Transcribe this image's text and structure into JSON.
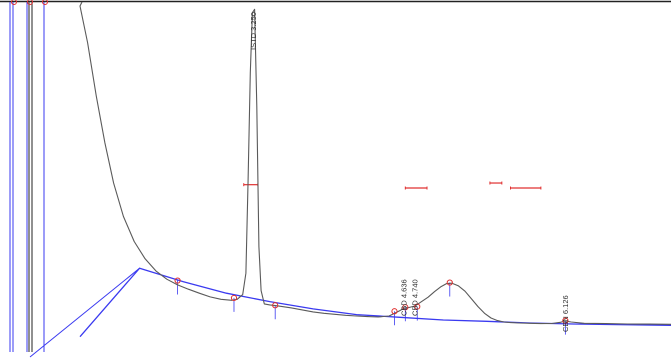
{
  "colors": {
    "trace": "#5a5a5a",
    "baseline": "#3a3af0",
    "marker": "#e03030",
    "frame": "#222222"
  },
  "chart_data": {
    "type": "line",
    "title": "",
    "xlabel": "",
    "ylabel": "",
    "grid": false,
    "legend": "none",
    "x_unit": "min",
    "xlim": [
      1.65,
      7.1
    ],
    "ylim": [
      0,
      100
    ],
    "series": [
      {
        "x": [
          1.65,
          1.72,
          1.8,
          1.88,
          1.96,
          2.05,
          2.15,
          2.25,
          2.35,
          2.45,
          2.55,
          2.65,
          2.75,
          2.85,
          2.95,
          3.05,
          3.1,
          3.15,
          3.18,
          3.2,
          3.22,
          3.24,
          3.26,
          3.28,
          3.3,
          3.32,
          3.35,
          3.4,
          3.45,
          3.5,
          3.6,
          3.7,
          3.8,
          3.9,
          4.0,
          4.1,
          4.2,
          4.3,
          4.4,
          4.5,
          4.6,
          4.636,
          4.68,
          4.74,
          4.8,
          4.86,
          4.92,
          4.98,
          5.03,
          5.08,
          5.14,
          5.2,
          5.26,
          5.32,
          5.38,
          5.44,
          5.5,
          5.56,
          5.62,
          5.7,
          5.8,
          5.9,
          6.0,
          6.08,
          6.126,
          6.18,
          6.3,
          6.5,
          6.7,
          6.9,
          7.1
        ],
        "y": [
          100.0,
          89.0,
          73.0,
          59.0,
          47.0,
          37.0,
          29.5,
          24.3,
          20.7,
          18.2,
          16.5,
          15.2,
          14.0,
          12.9,
          12.2,
          11.9,
          12.2,
          13.6,
          20.0,
          48.0,
          80.0,
          98.0,
          99.0,
          70.0,
          28.0,
          14.8,
          10.8,
          10.5,
          10.3,
          10.1,
          9.6,
          9.0,
          8.4,
          8.0,
          7.7,
          7.4,
          7.2,
          7.0,
          6.9,
          7.2,
          8.8,
          9.5,
          9.7,
          10.2,
          11.5,
          12.8,
          14.5,
          16.0,
          16.9,
          17.0,
          16.2,
          14.6,
          12.3,
          10.0,
          8.0,
          6.6,
          5.8,
          5.4,
          5.2,
          5.1,
          5.0,
          4.9,
          4.95,
          5.3,
          5.7,
          5.4,
          5.0,
          4.9,
          4.8,
          4.75,
          4.7
        ]
      }
    ],
    "baseline": {
      "x": [
        1.65,
        2.2,
        2.6,
        3.0,
        3.4,
        3.8,
        4.2,
        4.6,
        5.0,
        5.4,
        5.8,
        6.2,
        6.6,
        7.1
      ],
      "y": [
        1.0,
        21.5,
        17.5,
        14.0,
        11.5,
        9.3,
        7.6,
        6.8,
        6.0,
        5.6,
        5.1,
        4.8,
        4.6,
        4.4
      ]
    },
    "baseline_marks": [
      {
        "x": 2.55,
        "y": 17.8
      },
      {
        "x": 3.07,
        "y": 12.6
      },
      {
        "x": 3.45,
        "y": 10.4
      },
      {
        "x": 4.55,
        "y": 8.6
      },
      {
        "x": 4.65,
        "y": 9.8
      },
      {
        "x": 4.76,
        "y": 10.0
      },
      {
        "x": 5.06,
        "y": 17.2
      },
      {
        "x": 6.126,
        "y": 5.8
      }
    ],
    "integration_events": [
      {
        "x1": 3.16,
        "x2": 3.29,
        "y": 46.5
      },
      {
        "x1": 4.65,
        "x2": 4.85,
        "y": 45.5
      },
      {
        "x1": 5.43,
        "x2": 5.54,
        "y": 47.0
      },
      {
        "x1": 5.62,
        "x2": 5.9,
        "y": 45.5
      }
    ],
    "peaks": [
      {
        "label": "ISTD 3.250",
        "rt": 3.25
      },
      {
        "label": "CBD 4.636",
        "rt": 4.636
      },
      {
        "label": "CBD 4.740",
        "rt": 4.74
      },
      {
        "label": "CBN 6.126",
        "rt": 6.126
      }
    ]
  }
}
